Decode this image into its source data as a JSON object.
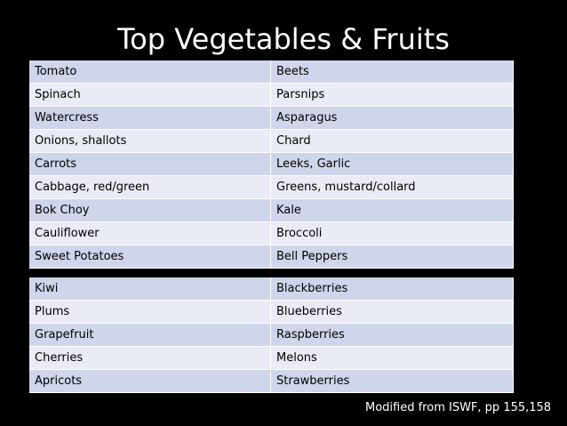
{
  "title": "Top Vegetables & Fruits",
  "vegetables": [
    [
      "Tomato",
      "Beets"
    ],
    [
      "Spinach",
      "Parsnips"
    ],
    [
      "Watercress",
      "Asparagus"
    ],
    [
      "Onions, shallots",
      "Chard"
    ],
    [
      "Carrots",
      "Leeks, Garlic"
    ],
    [
      "Cabbage, red/green",
      "Greens, mustard/collard"
    ],
    [
      "Bok Choy",
      "Kale"
    ],
    [
      "Cauliflower",
      "Broccoli"
    ],
    [
      "Sweet Potatoes",
      "Bell Peppers"
    ]
  ],
  "fruits": [
    [
      "Kiwi",
      "Blackberries"
    ],
    [
      "Plums",
      "Blueberries"
    ],
    [
      "Grapefruit",
      "Raspberries"
    ],
    [
      "Cherries",
      "Melons"
    ],
    [
      "Apricots",
      "Strawberries"
    ]
  ],
  "footnote": "Modified from ISWF, pp 155,158",
  "colors": {
    "background": "#000000",
    "row_dark": "#cfd5ea",
    "row_light": "#e9ebf5",
    "text_light": "#ffffff"
  }
}
